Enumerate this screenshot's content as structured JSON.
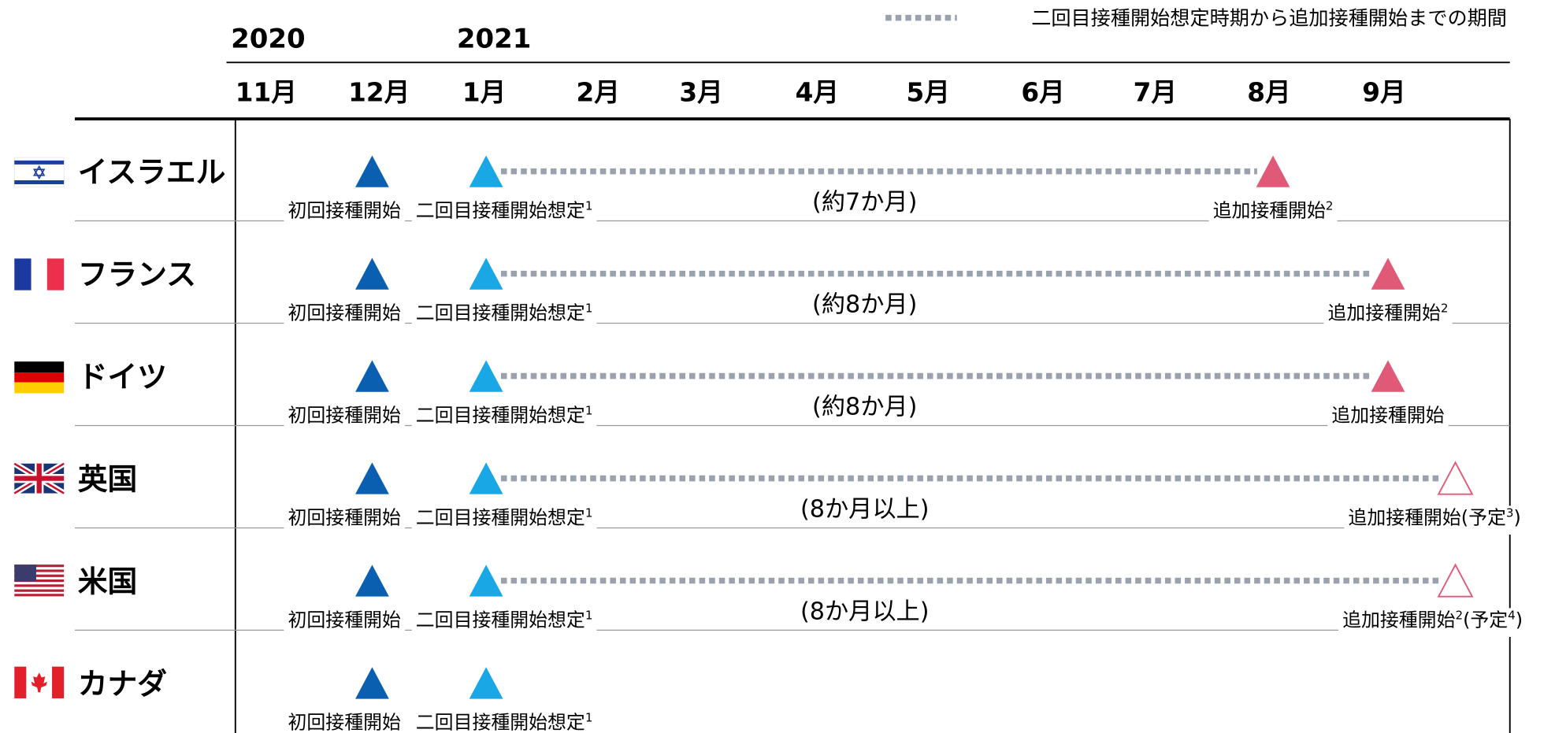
{
  "legend": "二回目接種開始想定時期から追加接種開始までの期間",
  "years": [
    "2020",
    "2021"
  ],
  "months": [
    "11月",
    "12月",
    "1月",
    "2月",
    "3月",
    "4月",
    "5月",
    "6月",
    "7月",
    "8月",
    "9月"
  ],
  "countries": [
    {
      "name": "イスラエル",
      "first": [
        "初回接種開始"
      ],
      "second": [
        "二回目接種開始想定",
        {
          "sup": "1"
        }
      ],
      "duration": "(約7か月)",
      "end": [
        "追加接種開始",
        {
          "sup": "2"
        }
      ],
      "end_fill": "#e05a78"
    },
    {
      "name": "フランス",
      "first": [
        "初回接種開始"
      ],
      "second": [
        "二回目接種開始想定",
        {
          "sup": "1"
        }
      ],
      "duration": "(約8か月)",
      "end": [
        "追加接種開始",
        {
          "sup": "2"
        }
      ],
      "end_fill": "#e05a78"
    },
    {
      "name": "ドイツ",
      "first": [
        "初回接種開始"
      ],
      "second": [
        "二回目接種開始想定",
        {
          "sup": "1"
        }
      ],
      "duration": "(約8か月)",
      "end": [
        "追加接種開始"
      ],
      "end_fill": "#e05a78"
    },
    {
      "name": "英国",
      "first": [
        "初回接種開始"
      ],
      "second": [
        "二回目接種開始想定",
        {
          "sup": "1"
        }
      ],
      "duration": "(8か月以上)",
      "end": [
        "追加接種開始(予定",
        {
          "sup": "3"
        },
        ")"
      ],
      "end_fill": "none"
    },
    {
      "name": "米国",
      "first": [
        "初回接種開始"
      ],
      "second": [
        "二回目接種開始想定",
        {
          "sup": "1"
        }
      ],
      "duration": "(8か月以上)",
      "end": [
        "追加接種開始",
        {
          "sup": "2"
        },
        "(予定",
        {
          "sup": "4"
        },
        ")"
      ],
      "end_fill": "none"
    },
    {
      "name": "カナダ",
      "first": [
        "初回接種開始"
      ],
      "second": [
        "二回目接種開始想定",
        {
          "sup": "1"
        }
      ]
    }
  ]
}
